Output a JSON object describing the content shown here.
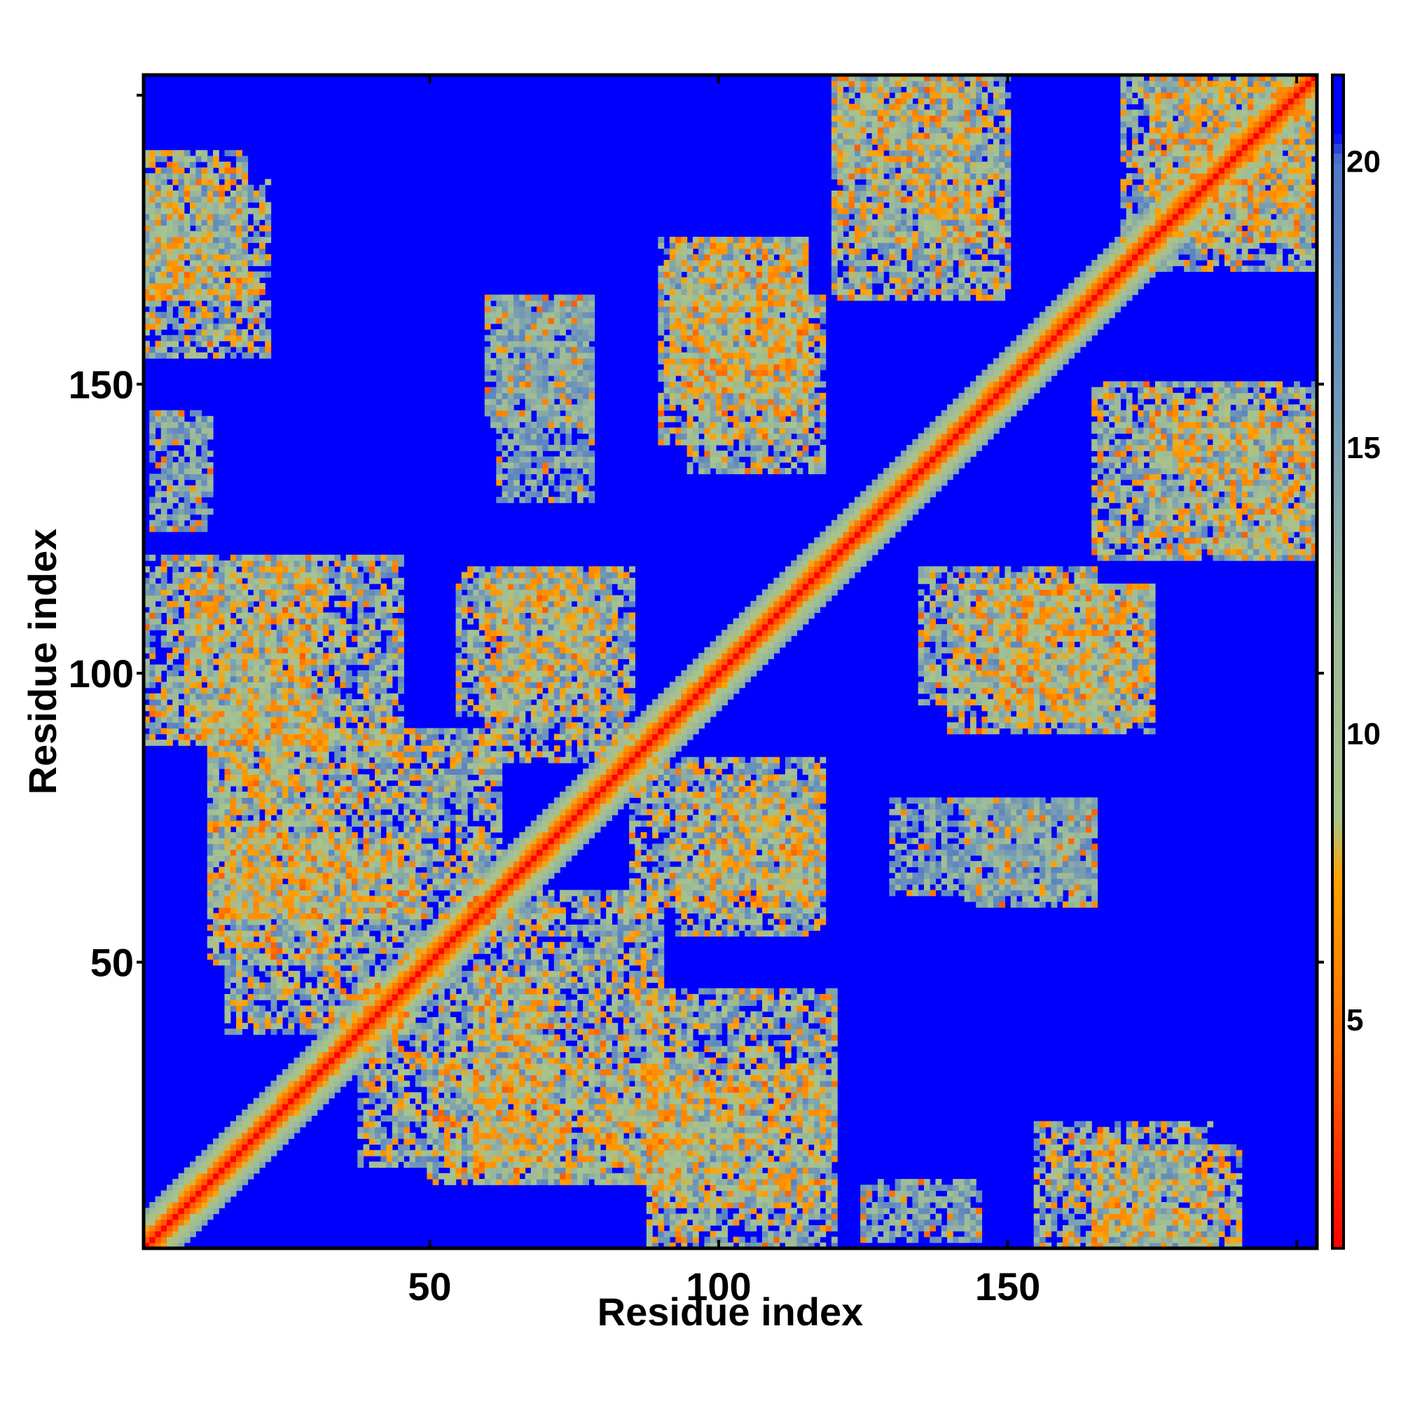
{
  "chart_data": {
    "type": "heatmap",
    "title": "",
    "xlabel": "Residue index",
    "ylabel": "Residue index",
    "n_residues": 203,
    "xlim": [
      1,
      203
    ],
    "ylim": [
      1,
      203
    ],
    "x_ticks": [
      50,
      100,
      150
    ],
    "y_ticks": [
      50,
      100,
      150
    ],
    "x_tick_labels": [
      "50",
      "100",
      "150"
    ],
    "y_tick_labels": [
      "50",
      "100",
      "150"
    ],
    "colorbar": {
      "range": [
        1,
        21.5
      ],
      "ticks": [
        5,
        10,
        15,
        20
      ],
      "tick_labels": [
        "5",
        "10",
        "15",
        "20"
      ],
      "placement": "right"
    },
    "colormap": [
      {
        "value": 1,
        "color": "#ff0000"
      },
      {
        "value": 4.5,
        "color": "#ff6a00"
      },
      {
        "value": 7.5,
        "color": "#ffa200"
      },
      {
        "value": 8.5,
        "color": "#a8c48c"
      },
      {
        "value": 12,
        "color": "#9bb99a"
      },
      {
        "value": 16,
        "color": "#6f96b8"
      },
      {
        "value": 20,
        "color": "#4f78c8"
      },
      {
        "value": 20.5,
        "color": "#0000ff"
      }
    ],
    "background_value": 21.5,
    "diagonal_band_halfwidth": 6,
    "contact_regions": [
      {
        "x": [
          8,
          45
        ],
        "y": [
          88,
          120
        ],
        "min": 6,
        "max": 19
      },
      {
        "x": [
          12,
          62
        ],
        "y": [
          58,
          90
        ],
        "min": 6,
        "max": 19
      },
      {
        "x": [
          38,
          72
        ],
        "y": [
          15,
          48
        ],
        "min": 6,
        "max": 19
      },
      {
        "x": [
          50,
          95
        ],
        "y": [
          12,
          33
        ],
        "min": 6,
        "max": 19
      },
      {
        "x": [
          88,
          120
        ],
        "y": [
          1,
          32
        ],
        "min": 6,
        "max": 19
      },
      {
        "x": [
          85,
          118
        ],
        "y": [
          60,
          85
        ],
        "min": 6,
        "max": 19
      },
      {
        "x": [
          55,
          80
        ],
        "y": [
          93,
          118
        ],
        "min": 6,
        "max": 19
      },
      {
        "x": [
          90,
          115
        ],
        "y": [
          140,
          175
        ],
        "min": 6,
        "max": 19
      },
      {
        "x": [
          120,
          145
        ],
        "y": [
          175,
          203
        ],
        "min": 6,
        "max": 19
      },
      {
        "x": [
          135,
          165
        ],
        "y": [
          95,
          118
        ],
        "min": 6,
        "max": 19
      },
      {
        "x": [
          148,
          175
        ],
        "y": [
          92,
          115
        ],
        "min": 6,
        "max": 19
      },
      {
        "x": [
          165,
          203
        ],
        "y": [
          120,
          150
        ],
        "min": 6,
        "max": 19
      },
      {
        "x": [
          175,
          203
        ],
        "y": [
          170,
          203
        ],
        "min": 6,
        "max": 19
      },
      {
        "x": [
          1,
          18
        ],
        "y": [
          165,
          190
        ],
        "min": 6,
        "max": 19
      },
      {
        "x": [
          155,
          185
        ],
        "y": [
          1,
          22
        ],
        "min": 6,
        "max": 19
      },
      {
        "x": [
          130,
          165
        ],
        "y": [
          62,
          78
        ],
        "min": 10,
        "max": 19
      },
      {
        "x": [
          60,
          78
        ],
        "y": [
          143,
          165
        ],
        "min": 10,
        "max": 19
      },
      {
        "x": [
          2,
          12
        ],
        "y": [
          125,
          145
        ],
        "min": 10,
        "max": 19
      }
    ]
  }
}
